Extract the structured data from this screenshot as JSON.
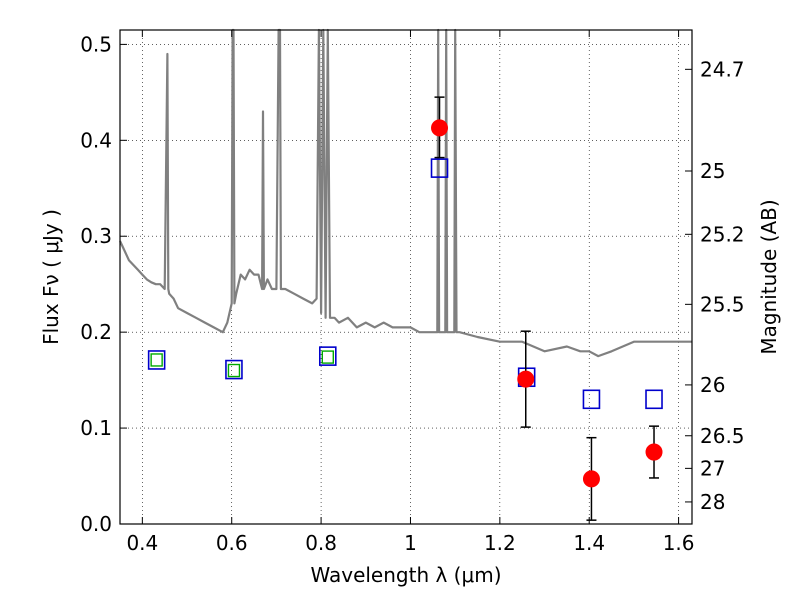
{
  "chart_data": {
    "type": "scatter",
    "xlabel": "Wavelength  λ (μm)",
    "ylabel": "Flux  Fν  ( μJy )",
    "ylabel_right": "Magnitude (AB)",
    "xlim": [
      0.35,
      1.63
    ],
    "ylim": [
      0.0,
      0.515
    ],
    "x_ticks": [
      0.4,
      0.6,
      0.8,
      1.0,
      1.2,
      1.4,
      1.6
    ],
    "x_tick_labels": [
      "0.4",
      "0.6",
      "0.8",
      "1",
      "1.2",
      "1.4",
      "1.6"
    ],
    "y_ticks": [
      0.0,
      0.1,
      0.2,
      0.3,
      0.4,
      0.5
    ],
    "y_tick_labels": [
      "0.0",
      "0.1",
      "0.2",
      "0.3",
      "0.4",
      "0.5"
    ],
    "right_ticks": [
      {
        "flux": 0.474,
        "label": "24.7"
      },
      {
        "flux": 0.368,
        "label": "25"
      },
      {
        "flux": 0.302,
        "label": "25.2"
      },
      {
        "flux": 0.229,
        "label": "25.5"
      },
      {
        "flux": 0.145,
        "label": "26"
      },
      {
        "flux": 0.092,
        "label": "26.5"
      },
      {
        "flux": 0.058,
        "label": "27"
      },
      {
        "flux": 0.023,
        "label": "28"
      }
    ],
    "grid": true,
    "colors": {
      "model_spectrum": "#808080",
      "observed": "#ff0000",
      "model_photometry": "#0000cc",
      "small_photometry": "#00aa00",
      "errorbar": "#000000"
    },
    "series": [
      {
        "kind": "line",
        "x": [
          0.35,
          0.36,
          0.37,
          0.38,
          0.39,
          0.4,
          0.41,
          0.42,
          0.43,
          0.44,
          0.45,
          0.456,
          0.458,
          0.46,
          0.47,
          0.48,
          0.5,
          0.52,
          0.54,
          0.56,
          0.58,
          0.59,
          0.6,
          0.602,
          0.604,
          0.606,
          0.61,
          0.62,
          0.63,
          0.64,
          0.65,
          0.66,
          0.668,
          0.67,
          0.672,
          0.68,
          0.69,
          0.7,
          0.705,
          0.708,
          0.71,
          0.72,
          0.74,
          0.76,
          0.78,
          0.79,
          0.795,
          0.8,
          0.805,
          0.81,
          0.815,
          0.82,
          0.83,
          0.84,
          0.86,
          0.88,
          0.9,
          0.92,
          0.94,
          0.96,
          0.98,
          1.0,
          1.02,
          1.04,
          1.06,
          1.062,
          1.064,
          1.07,
          1.078,
          1.08,
          1.082,
          1.09,
          1.098,
          1.1,
          1.103,
          1.11,
          1.15,
          1.2,
          1.25,
          1.3,
          1.35,
          1.38,
          1.4,
          1.42,
          1.45,
          1.5,
          1.55,
          1.6,
          1.63
        ],
        "y": [
          0.295,
          0.285,
          0.275,
          0.27,
          0.265,
          0.26,
          0.255,
          0.252,
          0.25,
          0.25,
          0.245,
          0.49,
          0.245,
          0.24,
          0.235,
          0.225,
          0.22,
          0.215,
          0.21,
          0.205,
          0.2,
          0.21,
          0.23,
          0.52,
          0.52,
          0.23,
          0.24,
          0.26,
          0.255,
          0.265,
          0.26,
          0.26,
          0.245,
          0.43,
          0.245,
          0.255,
          0.245,
          0.245,
          0.52,
          0.52,
          0.245,
          0.245,
          0.24,
          0.235,
          0.23,
          0.235,
          0.52,
          0.22,
          0.52,
          0.215,
          0.52,
          0.215,
          0.215,
          0.21,
          0.215,
          0.205,
          0.21,
          0.205,
          0.21,
          0.205,
          0.205,
          0.205,
          0.2,
          0.2,
          0.2,
          0.52,
          0.2,
          0.2,
          0.2,
          0.52,
          0.2,
          0.2,
          0.2,
          0.52,
          0.2,
          0.2,
          0.195,
          0.19,
          0.19,
          0.18,
          0.185,
          0.18,
          0.18,
          0.175,
          0.18,
          0.19,
          0.19,
          0.19,
          0.19
        ]
      },
      {
        "kind": "points",
        "x": [
          1.065,
          1.258,
          1.405,
          1.545
        ],
        "y": [
          0.413,
          0.151,
          0.047,
          0.075
        ],
        "yerr_low": [
          0.382,
          0.101,
          0.004,
          0.048
        ],
        "yerr_high": [
          0.445,
          0.201,
          0.09,
          0.102
        ]
      },
      {
        "kind": "squares",
        "x": [
          0.432,
          0.605,
          0.815,
          1.065,
          1.26,
          1.405,
          1.545
        ],
        "y": [
          0.171,
          0.161,
          0.175,
          0.371,
          0.153,
          0.13,
          0.13
        ]
      },
      {
        "kind": "small-squares",
        "x": [
          0.432,
          0.605,
          0.815
        ],
        "y": [
          0.171,
          0.16,
          0.174
        ]
      }
    ]
  }
}
